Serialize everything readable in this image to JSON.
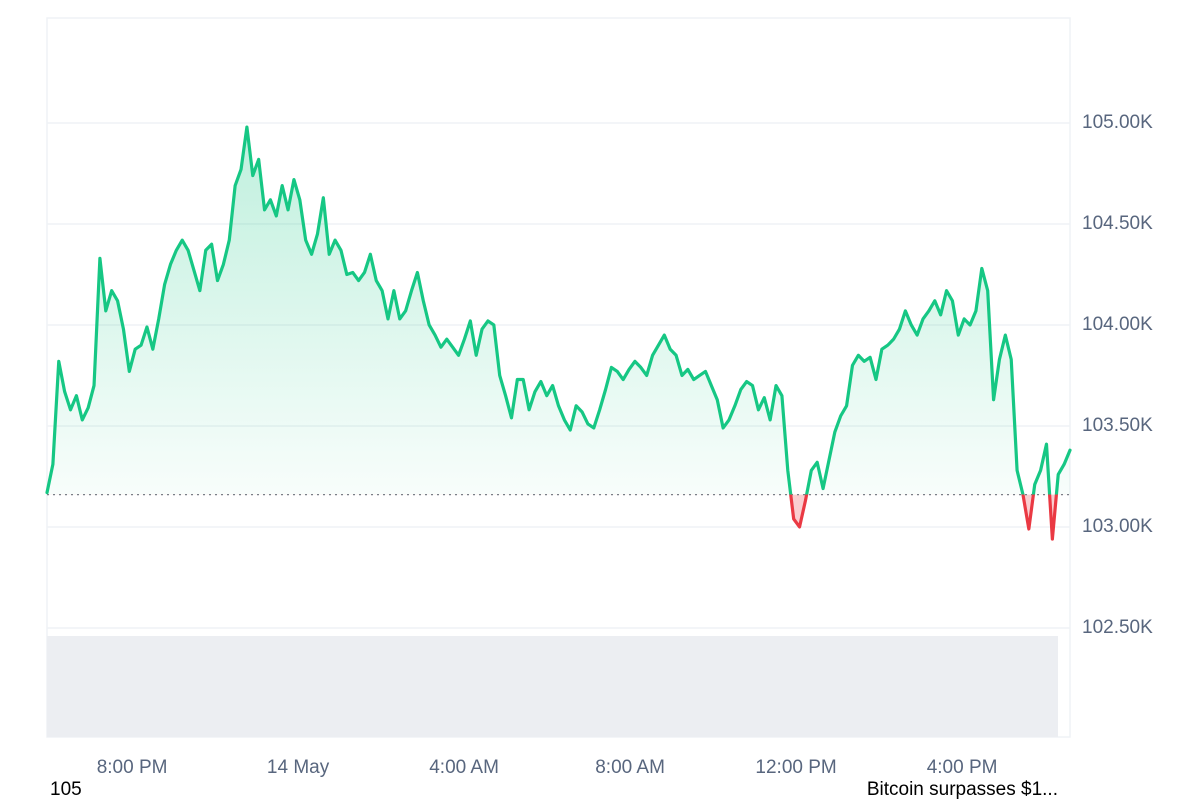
{
  "chart_data": {
    "type": "line",
    "color": "#16c784",
    "negative_color": "#ea3943",
    "baseline": 103160,
    "grid": true,
    "xlim": [
      -363,
      1116
    ],
    "xticks": [
      {
        "value": -240,
        "label": "8:00 PM"
      },
      {
        "value": 0,
        "label": "14 May"
      },
      {
        "value": 240,
        "label": "4:00 AM"
      },
      {
        "value": 480,
        "label": "8:00 AM"
      },
      {
        "value": 720,
        "label": "12:00 PM"
      },
      {
        "value": 960,
        "label": "4:00 PM"
      }
    ],
    "ylim": [
      101960,
      105520
    ],
    "yticks": [
      {
        "value": 102500,
        "label": "102.50K"
      },
      {
        "value": 103000,
        "label": "103.00K"
      },
      {
        "value": 103500,
        "label": "103.50K"
      },
      {
        "value": 104000,
        "label": "104.00K"
      },
      {
        "value": 104500,
        "label": "104.50K"
      },
      {
        "value": 105000,
        "label": "105.00K"
      }
    ],
    "x": [
      -363,
      -354.5,
      -346,
      -337.5,
      -329,
      -320.5,
      -312,
      -303.5,
      -295,
      -286.5,
      -278,
      -269.5,
      -261,
      -252.5,
      -244,
      -235.5,
      -227,
      -218.5,
      -210,
      -201.5,
      -193,
      -184.5,
      -176,
      -167.5,
      -159,
      -150.5,
      -142,
      -133.5,
      -125,
      -116.5,
      -108,
      -99.5,
      -91,
      -82.5,
      -74,
      -65.5,
      -57,
      -48.5,
      -40,
      -31.5,
      -23,
      -14.5,
      -6,
      2.5,
      11,
      19.5,
      28,
      36.5,
      45,
      53.5,
      62,
      70.5,
      79,
      87.5,
      96,
      104.5,
      113,
      121.5,
      130,
      138.5,
      147,
      155.5,
      164,
      172.5,
      181,
      189.5,
      198,
      206.5,
      215,
      223.5,
      232,
      240.5,
      249,
      257.5,
      266,
      274.5,
      283,
      291.5,
      300,
      308.5,
      317,
      325.5,
      334,
      342.5,
      351,
      359.5,
      368,
      376.5,
      385,
      393.5,
      402,
      410.5,
      419,
      427.5,
      436,
      444.5,
      453,
      461.5,
      470,
      478.5,
      487,
      495.5,
      504,
      512.5,
      521,
      529.5,
      538,
      546.5,
      555,
      563.5,
      572,
      580.5,
      589,
      597.5,
      606,
      614.5,
      623,
      631.5,
      640,
      648.5,
      657,
      665.5,
      674,
      682.5,
      691,
      699.5,
      708,
      716.5,
      725,
      733.5,
      742,
      750.5,
      759,
      767.5,
      776,
      784.5,
      793,
      801.5,
      810,
      818.5,
      827,
      835.5,
      844,
      852.5,
      861,
      869.5,
      878,
      886.5,
      895,
      903.5,
      912,
      920.5,
      929,
      937.5,
      946,
      954.5,
      963,
      971.5,
      980,
      988.5,
      997,
      1005.5,
      1014,
      1022.5,
      1031,
      1039.5,
      1048,
      1056.5,
      1065,
      1073.5,
      1082,
      1090.5,
      1099,
      1107.5,
      1116
    ],
    "values": [
      103170,
      103310,
      103820,
      103670,
      103580,
      103650,
      103530,
      103590,
      103700,
      104330,
      104070,
      104170,
      104120,
      103980,
      103770,
      103880,
      103900,
      103990,
      103880,
      104030,
      104200,
      104300,
      104370,
      104420,
      104370,
      104270,
      104170,
      104370,
      104400,
      104220,
      104300,
      104420,
      104690,
      104770,
      104980,
      104740,
      104820,
      104570,
      104620,
      104540,
      104690,
      104570,
      104720,
      104620,
      104420,
      104350,
      104450,
      104630,
      104350,
      104420,
      104370,
      104250,
      104260,
      104220,
      104260,
      104350,
      104220,
      104170,
      104030,
      104170,
      104030,
      104070,
      104170,
      104260,
      104120,
      104000,
      103950,
      103890,
      103930,
      103890,
      103850,
      103930,
      104020,
      103850,
      103980,
      104020,
      104000,
      103750,
      103650,
      103540,
      103730,
      103730,
      103580,
      103670,
      103720,
      103650,
      103700,
      103600,
      103530,
      103480,
      103600,
      103570,
      103510,
      103490,
      103580,
      103680,
      103790,
      103770,
      103730,
      103780,
      103820,
      103790,
      103750,
      103850,
      103900,
      103950,
      103880,
      103850,
      103750,
      103780,
      103730,
      103750,
      103770,
      103700,
      103630,
      103490,
      103530,
      103600,
      103680,
      103720,
      103700,
      103580,
      103640,
      103530,
      103700,
      103650,
      103280,
      103040,
      103000,
      103130,
      103280,
      103320,
      103190,
      103330,
      103470,
      103550,
      103600,
      103800,
      103850,
      103820,
      103840,
      103730,
      103880,
      103900,
      103930,
      103980,
      104070,
      104000,
      103950,
      104030,
      104070,
      104120,
      104050,
      104170,
      104120,
      103950,
      104030,
      104000,
      104070,
      104280,
      104170,
      103630,
      103830,
      103950,
      103830,
      103280,
      103160,
      102990,
      103210,
      103280,
      103410,
      102940,
      103260,
      103310,
      103380
    ]
  },
  "caption_left": "105",
  "caption_right": "Bitcoin surpasses $1..."
}
